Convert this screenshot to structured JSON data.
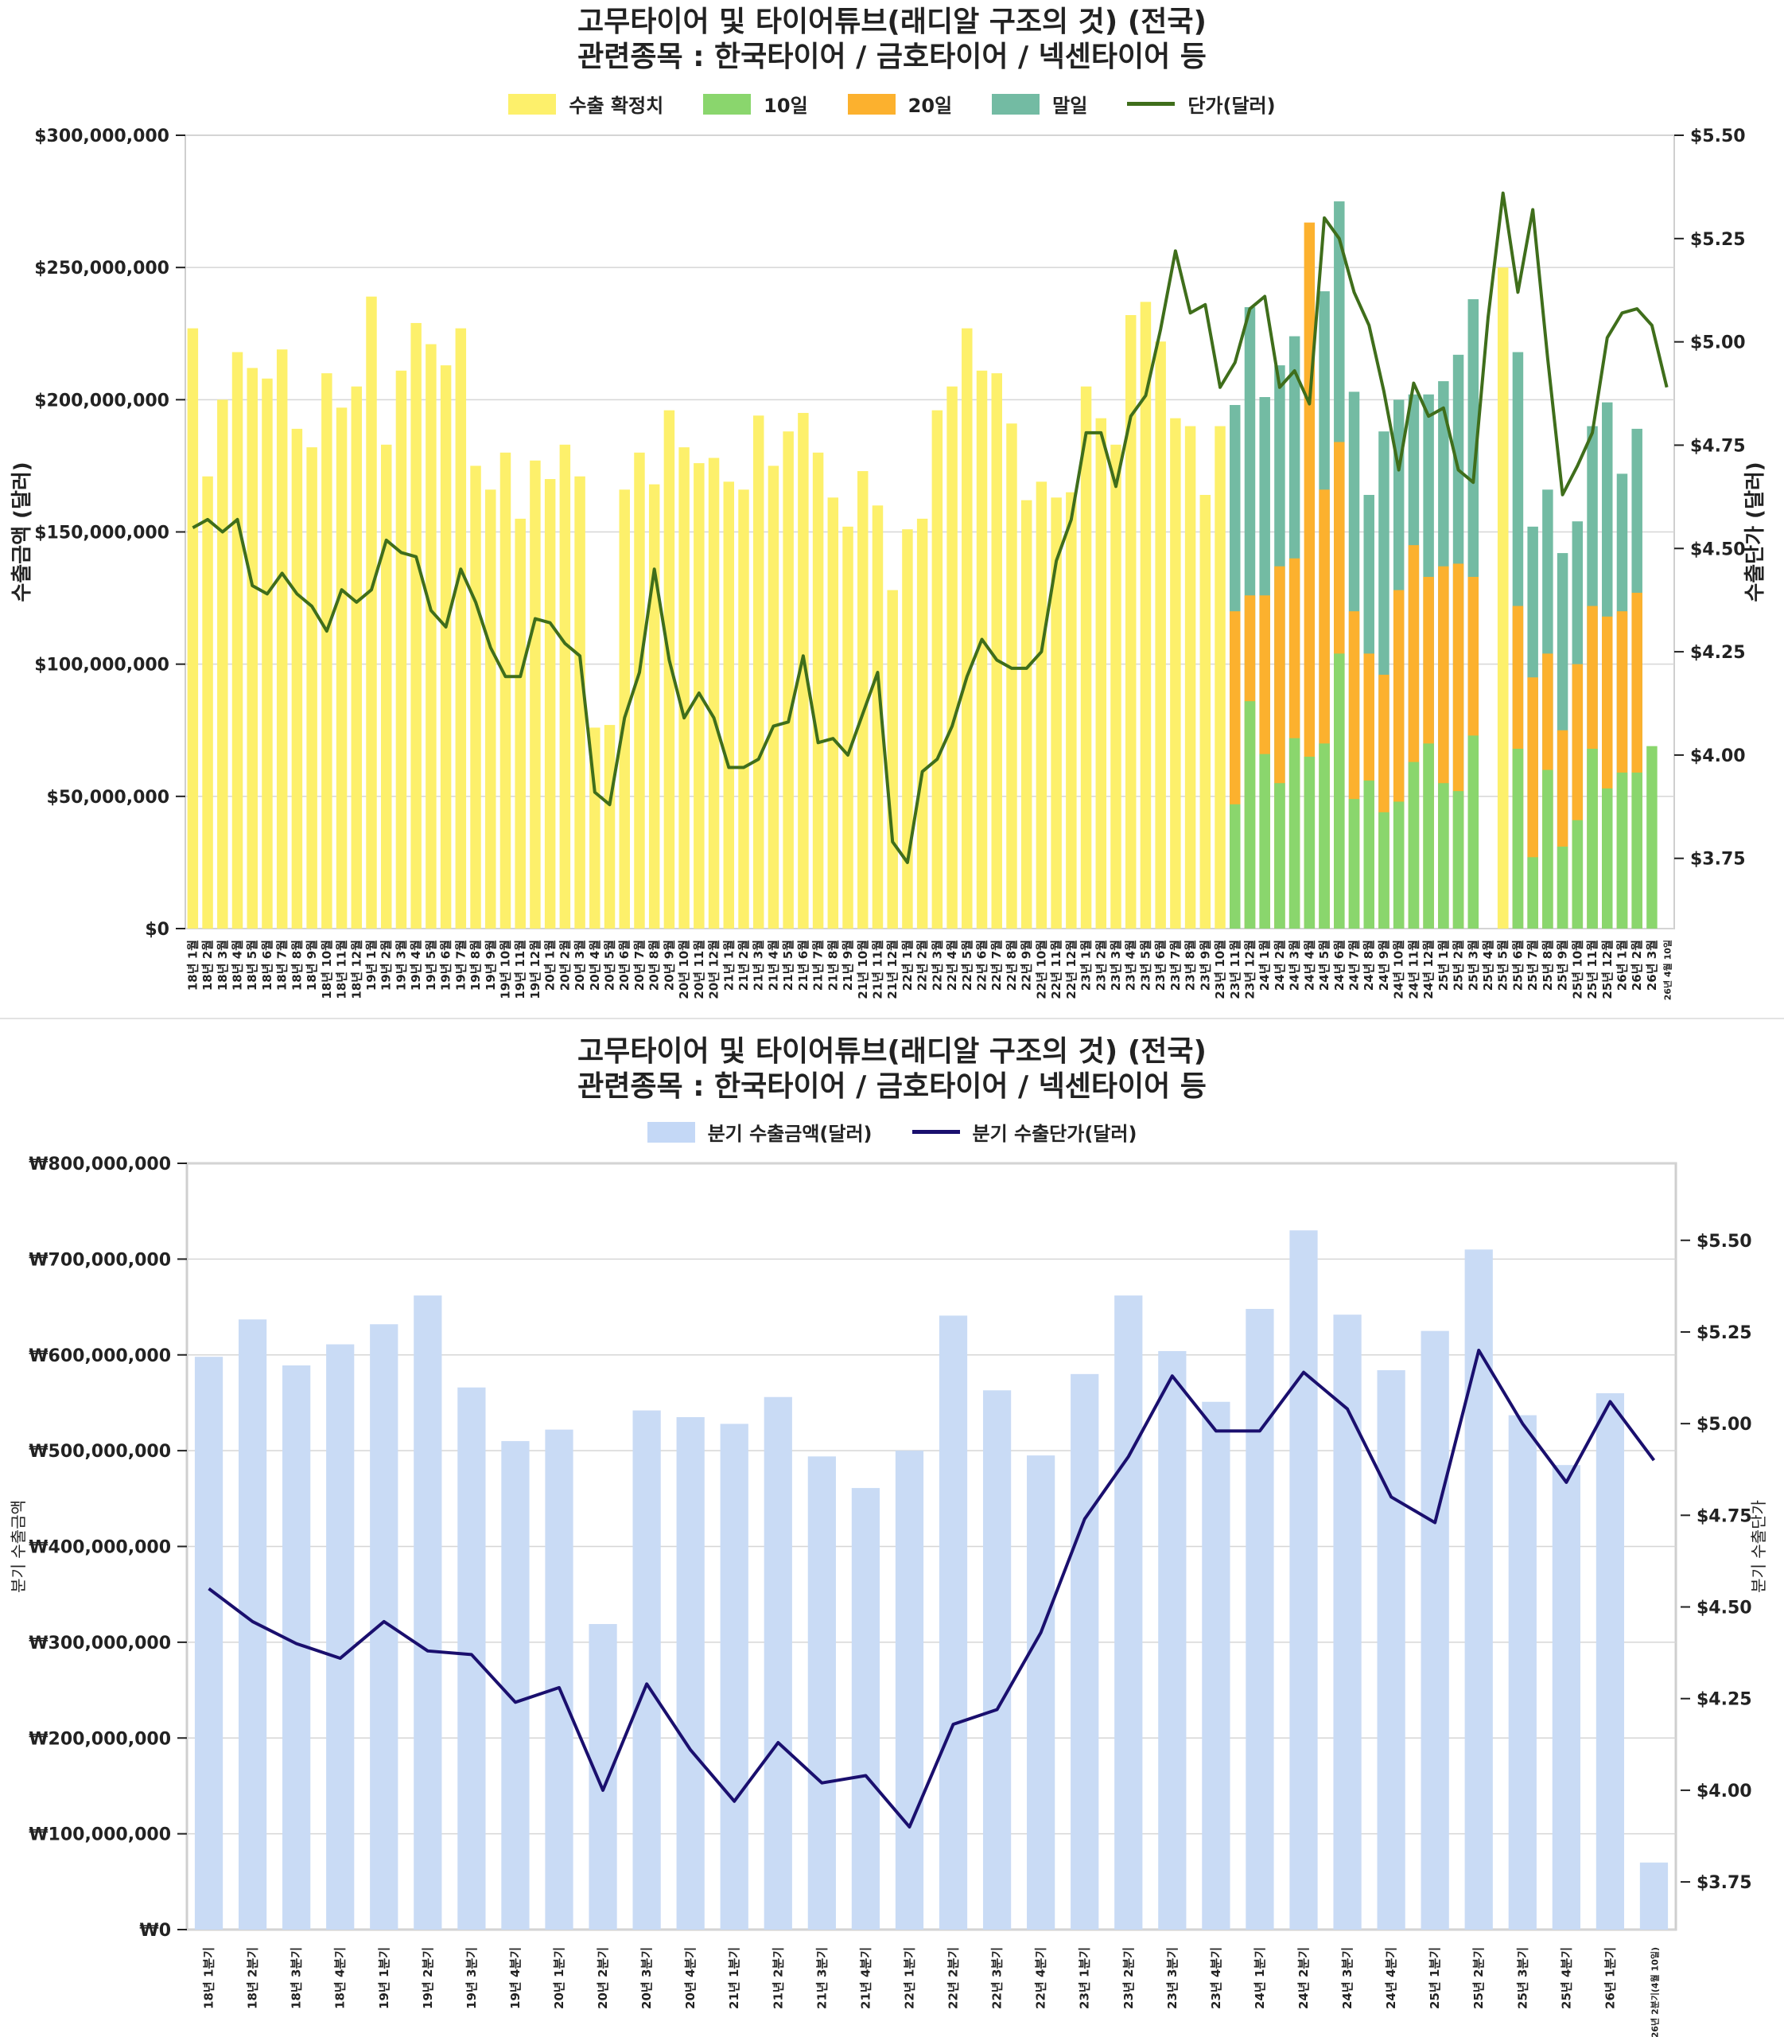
{
  "chart_data": [
    {
      "type": "bar",
      "title": "고무타이어 및 타이어튜브(래디알 구조의 것) (전국)",
      "subtitle": "관련종목 : 한국타이어 / 금호타이어 / 넥센타이어 등",
      "ylabel": "수출금액 (달러)",
      "y2label": "수출단가 (달러)",
      "ylim": [
        0,
        300000000
      ],
      "y2lim": [
        3.58,
        5.5
      ],
      "yticks": [
        "$0",
        "$50,000,000",
        "$100,000,000",
        "$150,000,000",
        "$200,000,000",
        "$250,000,000",
        "$300,000,000"
      ],
      "y2ticks": [
        "$3.75",
        "$4.00",
        "$4.25",
        "$4.50",
        "$4.75",
        "$5.00",
        "$5.25",
        "$5.50"
      ],
      "grid": true,
      "legend_position": "top-center",
      "legend": [
        {
          "label": "수출 확정치",
          "color": "#fdf06b",
          "kind": "bar"
        },
        {
          "label": "10일",
          "color": "#8ad66d",
          "kind": "bar"
        },
        {
          "label": "20일",
          "color": "#fcb12e",
          "kind": "bar"
        },
        {
          "label": "말일",
          "color": "#73bba3",
          "kind": "bar"
        },
        {
          "label": "단가(달러)",
          "color": "#3f6e1b",
          "kind": "line"
        }
      ],
      "categories": [
        "18년 1월",
        "18년 2월",
        "18년 3월",
        "18년 4월",
        "18년 5월",
        "18년 6월",
        "18년 7월",
        "18년 8월",
        "18년 9월",
        "18년 10월",
        "18년 11월",
        "18년 12월",
        "19년 1월",
        "19년 2월",
        "19년 3월",
        "19년 4월",
        "19년 5월",
        "19년 6월",
        "19년 7월",
        "19년 8월",
        "19년 9월",
        "19년 10월",
        "19년 11월",
        "19년 12월",
        "20년 1월",
        "20년 2월",
        "20년 3월",
        "20년 4월",
        "20년 5월",
        "20년 6월",
        "20년 7월",
        "20년 8월",
        "20년 9월",
        "20년 10월",
        "20년 11월",
        "20년 12월",
        "21년 1월",
        "21년 2월",
        "21년 3월",
        "21년 4월",
        "21년 5월",
        "21년 6월",
        "21년 7월",
        "21년 8월",
        "21년 9월",
        "21년 10월",
        "21년 11월",
        "21년 12월",
        "22년 1월",
        "22년 2월",
        "22년 3월",
        "22년 4월",
        "22년 5월",
        "22년 6월",
        "22년 7월",
        "22년 8월",
        "22년 9월",
        "22년 10월",
        "22년 11월",
        "22년 12월",
        "23년 1월",
        "23년 2월",
        "23년 3월",
        "23년 4월",
        "23년 5월",
        "23년 6월",
        "23년 7월",
        "23년 8월",
        "23년 9월",
        "23년 10월",
        "23년 11월",
        "23년 12월",
        "24년 1월",
        "24년 2월",
        "24년 3월",
        "24년 4월",
        "24년 5월",
        "24년 6월",
        "24년 7월",
        "24년 8월",
        "24년 9월",
        "24년 10월",
        "24년 11월",
        "24년 12월",
        "25년 1월",
        "25년 2월",
        "25년 3월",
        "25년 4월",
        "25년 5월",
        "25년 6월",
        "25년 7월",
        "25년 8월",
        "25년 9월",
        "25년 10월",
        "25년 11월",
        "25년 12월",
        "26년 1월",
        "26년 2월",
        "26년 3월",
        "26년 4월 10일"
      ],
      "series": [
        {
          "name": "수출 확정치",
          "values": [
            227,
            171,
            200,
            218,
            212,
            208,
            219,
            189,
            182,
            210,
            197,
            205,
            239,
            183,
            211,
            229,
            221,
            213,
            227,
            175,
            166,
            180,
            155,
            177,
            170,
            183,
            171,
            76,
            77,
            166,
            180,
            168,
            196,
            182,
            176,
            178,
            169,
            166,
            194,
            175,
            188,
            195,
            180,
            163,
            152,
            173,
            160,
            128,
            151,
            155,
            196,
            205,
            227,
            211,
            210,
            191,
            162,
            169,
            163,
            165,
            205,
            193,
            183,
            232,
            237,
            222,
            193,
            190,
            164,
            190,
            null,
            null,
            null,
            null,
            null,
            null,
            null,
            null,
            null,
            null,
            null,
            null,
            null,
            null,
            null,
            null,
            null,
            null,
            250,
            null,
            null,
            null,
            null,
            null,
            null,
            null,
            null,
            null,
            null,
            null
          ],
          "unit": "million USD"
        },
        {
          "name": "10일",
          "values": [
            null,
            null,
            null,
            null,
            null,
            null,
            null,
            null,
            null,
            null,
            null,
            null,
            null,
            null,
            null,
            null,
            null,
            null,
            null,
            null,
            null,
            null,
            null,
            null,
            null,
            null,
            null,
            null,
            null,
            null,
            null,
            null,
            null,
            null,
            null,
            null,
            null,
            null,
            null,
            null,
            null,
            null,
            null,
            null,
            null,
            null,
            null,
            null,
            null,
            null,
            null,
            null,
            null,
            null,
            null,
            null,
            null,
            null,
            null,
            null,
            null,
            null,
            null,
            null,
            null,
            null,
            null,
            null,
            null,
            null,
            47,
            86,
            66,
            55,
            72,
            65,
            70,
            104,
            49,
            56,
            44,
            48,
            63,
            70,
            55,
            52,
            73,
            null,
            null,
            68,
            27,
            60,
            31,
            41,
            68,
            53,
            59,
            59,
            69,
            null
          ],
          "unit": "million USD, cumulative"
        },
        {
          "name": "20일",
          "values": [
            null,
            null,
            null,
            null,
            null,
            null,
            null,
            null,
            null,
            null,
            null,
            null,
            null,
            null,
            null,
            null,
            null,
            null,
            null,
            null,
            null,
            null,
            null,
            null,
            null,
            null,
            null,
            null,
            null,
            null,
            null,
            null,
            null,
            null,
            null,
            null,
            null,
            null,
            null,
            null,
            null,
            null,
            null,
            null,
            null,
            null,
            null,
            null,
            null,
            null,
            null,
            null,
            null,
            null,
            null,
            null,
            null,
            null,
            null,
            null,
            null,
            null,
            null,
            null,
            null,
            null,
            null,
            null,
            null,
            null,
            120,
            126,
            126,
            137,
            140,
            267,
            166,
            184,
            120,
            104,
            96,
            128,
            145,
            133,
            137,
            138,
            133,
            null,
            147,
            122,
            95,
            104,
            75,
            100,
            122,
            118,
            120,
            127,
            null,
            null
          ],
          "unit": "million USD, cumulative"
        },
        {
          "name": "말일",
          "values": [
            null,
            null,
            null,
            null,
            null,
            null,
            null,
            null,
            null,
            null,
            null,
            null,
            null,
            null,
            null,
            null,
            null,
            null,
            null,
            null,
            null,
            null,
            null,
            null,
            null,
            null,
            null,
            null,
            null,
            null,
            null,
            null,
            null,
            null,
            null,
            null,
            null,
            null,
            null,
            null,
            null,
            null,
            null,
            null,
            null,
            null,
            null,
            null,
            null,
            null,
            null,
            null,
            null,
            null,
            null,
            null,
            null,
            null,
            null,
            null,
            null,
            null,
            null,
            null,
            null,
            null,
            null,
            null,
            null,
            null,
            198,
            235,
            201,
            213,
            224,
            null,
            241,
            275,
            203,
            164,
            188,
            200,
            202,
            202,
            207,
            217,
            238,
            null,
            222,
            218,
            152,
            166,
            142,
            154,
            190,
            199,
            172,
            189,
            null,
            null
          ],
          "unit": "million USD, cumulative"
        },
        {
          "name": "단가(달러)",
          "axis": "right",
          "values": [
            4.55,
            4.57,
            4.54,
            4.57,
            4.41,
            4.39,
            4.44,
            4.39,
            4.36,
            4.3,
            4.4,
            4.37,
            4.4,
            4.52,
            4.49,
            4.48,
            4.35,
            4.31,
            4.45,
            4.37,
            4.26,
            4.19,
            4.19,
            4.33,
            4.32,
            4.27,
            4.24,
            3.91,
            3.88,
            4.09,
            4.2,
            4.45,
            4.23,
            4.09,
            4.15,
            4.09,
            3.97,
            3.97,
            3.99,
            4.07,
            4.08,
            4.24,
            4.03,
            4.04,
            4.0,
            4.1,
            4.2,
            3.79,
            3.74,
            3.96,
            3.99,
            4.07,
            4.19,
            4.28,
            4.23,
            4.21,
            4.21,
            4.25,
            4.47,
            4.57,
            4.78,
            4.78,
            4.65,
            4.82,
            4.87,
            5.03,
            5.22,
            5.07,
            5.09,
            4.89,
            4.95,
            5.08,
            5.11,
            4.89,
            4.93,
            4.85,
            5.3,
            5.25,
            5.12,
            5.04,
            4.88,
            4.69,
            4.9,
            4.82,
            4.84,
            4.69,
            4.66,
            5.06,
            5.36,
            5.12,
            5.32,
            4.96,
            4.63,
            4.7,
            4.78,
            5.01,
            5.07,
            5.08,
            5.04,
            4.89
          ]
        }
      ]
    },
    {
      "type": "bar",
      "title": "고무타이어 및 타이어튜브(래디알 구조의 것) (전국)",
      "subtitle": "관련종목 : 한국타이어 / 금호타이어 / 넥센타이어 등",
      "ylabel": "분기 수출금액",
      "y2label": "분기 수출단가",
      "ylim": [
        0,
        800000000
      ],
      "y2lim": [
        3.62,
        5.71
      ],
      "yticks": [
        "₩0",
        "₩100,000,000",
        "₩200,000,000",
        "₩300,000,000",
        "₩400,000,000",
        "₩500,000,000",
        "₩600,000,000",
        "₩700,000,000",
        "₩800,000,000"
      ],
      "y2ticks": [
        "$3.75",
        "$4.00",
        "$4.25",
        "$4.50",
        "$4.75",
        "$5.00",
        "$5.25",
        "$5.50"
      ],
      "grid": true,
      "legend_position": "top-center",
      "legend": [
        {
          "label": "분기 수출금액(달러)",
          "color": "#c4d8f6",
          "kind": "bar"
        },
        {
          "label": "분기 수출단가(달러)",
          "color": "#1a0f6e",
          "kind": "line"
        }
      ],
      "categories": [
        "18년 1분기",
        "18년 2분기",
        "18년 3분기",
        "18년 4분기",
        "19년 1분기",
        "19년 2분기",
        "19년 3분기",
        "19년 4분기",
        "20년 1분기",
        "20년 2분기",
        "20년 3분기",
        "20년 4분기",
        "21년 1분기",
        "21년 2분기",
        "21년 3분기",
        "21년 4분기",
        "22년 1분기",
        "22년 2분기",
        "22년 3분기",
        "22년 4분기",
        "23년 1분기",
        "23년 2분기",
        "23년 3분기",
        "23년 4분기",
        "24년 1분기",
        "24년 2분기",
        "24년 3분기",
        "24년 4분기",
        "25년 1분기",
        "25년 2분기",
        "25년 3분기",
        "25년 4분기",
        "26년 1분기",
        "26년 2분기(4월 10일)"
      ],
      "series": [
        {
          "name": "분기 수출금액(달러)",
          "values": [
            598,
            637,
            589,
            611,
            632,
            662,
            566,
            510,
            522,
            319,
            542,
            535,
            528,
            556,
            494,
            461,
            500,
            641,
            563,
            495,
            580,
            662,
            604,
            551,
            648,
            730,
            642,
            584,
            625,
            710,
            537,
            485,
            560,
            70
          ],
          "unit": "million"
        },
        {
          "name": "분기 수출단가(달러)",
          "axis": "right",
          "values": [
            4.55,
            4.46,
            4.4,
            4.36,
            4.46,
            4.38,
            4.37,
            4.24,
            4.28,
            4.0,
            4.29,
            4.11,
            3.97,
            4.13,
            4.02,
            4.04,
            3.9,
            4.18,
            4.22,
            4.43,
            4.74,
            4.91,
            5.13,
            4.98,
            4.98,
            5.14,
            5.04,
            4.8,
            4.73,
            5.2,
            5.0,
            4.84,
            5.06,
            4.9
          ]
        }
      ]
    }
  ]
}
